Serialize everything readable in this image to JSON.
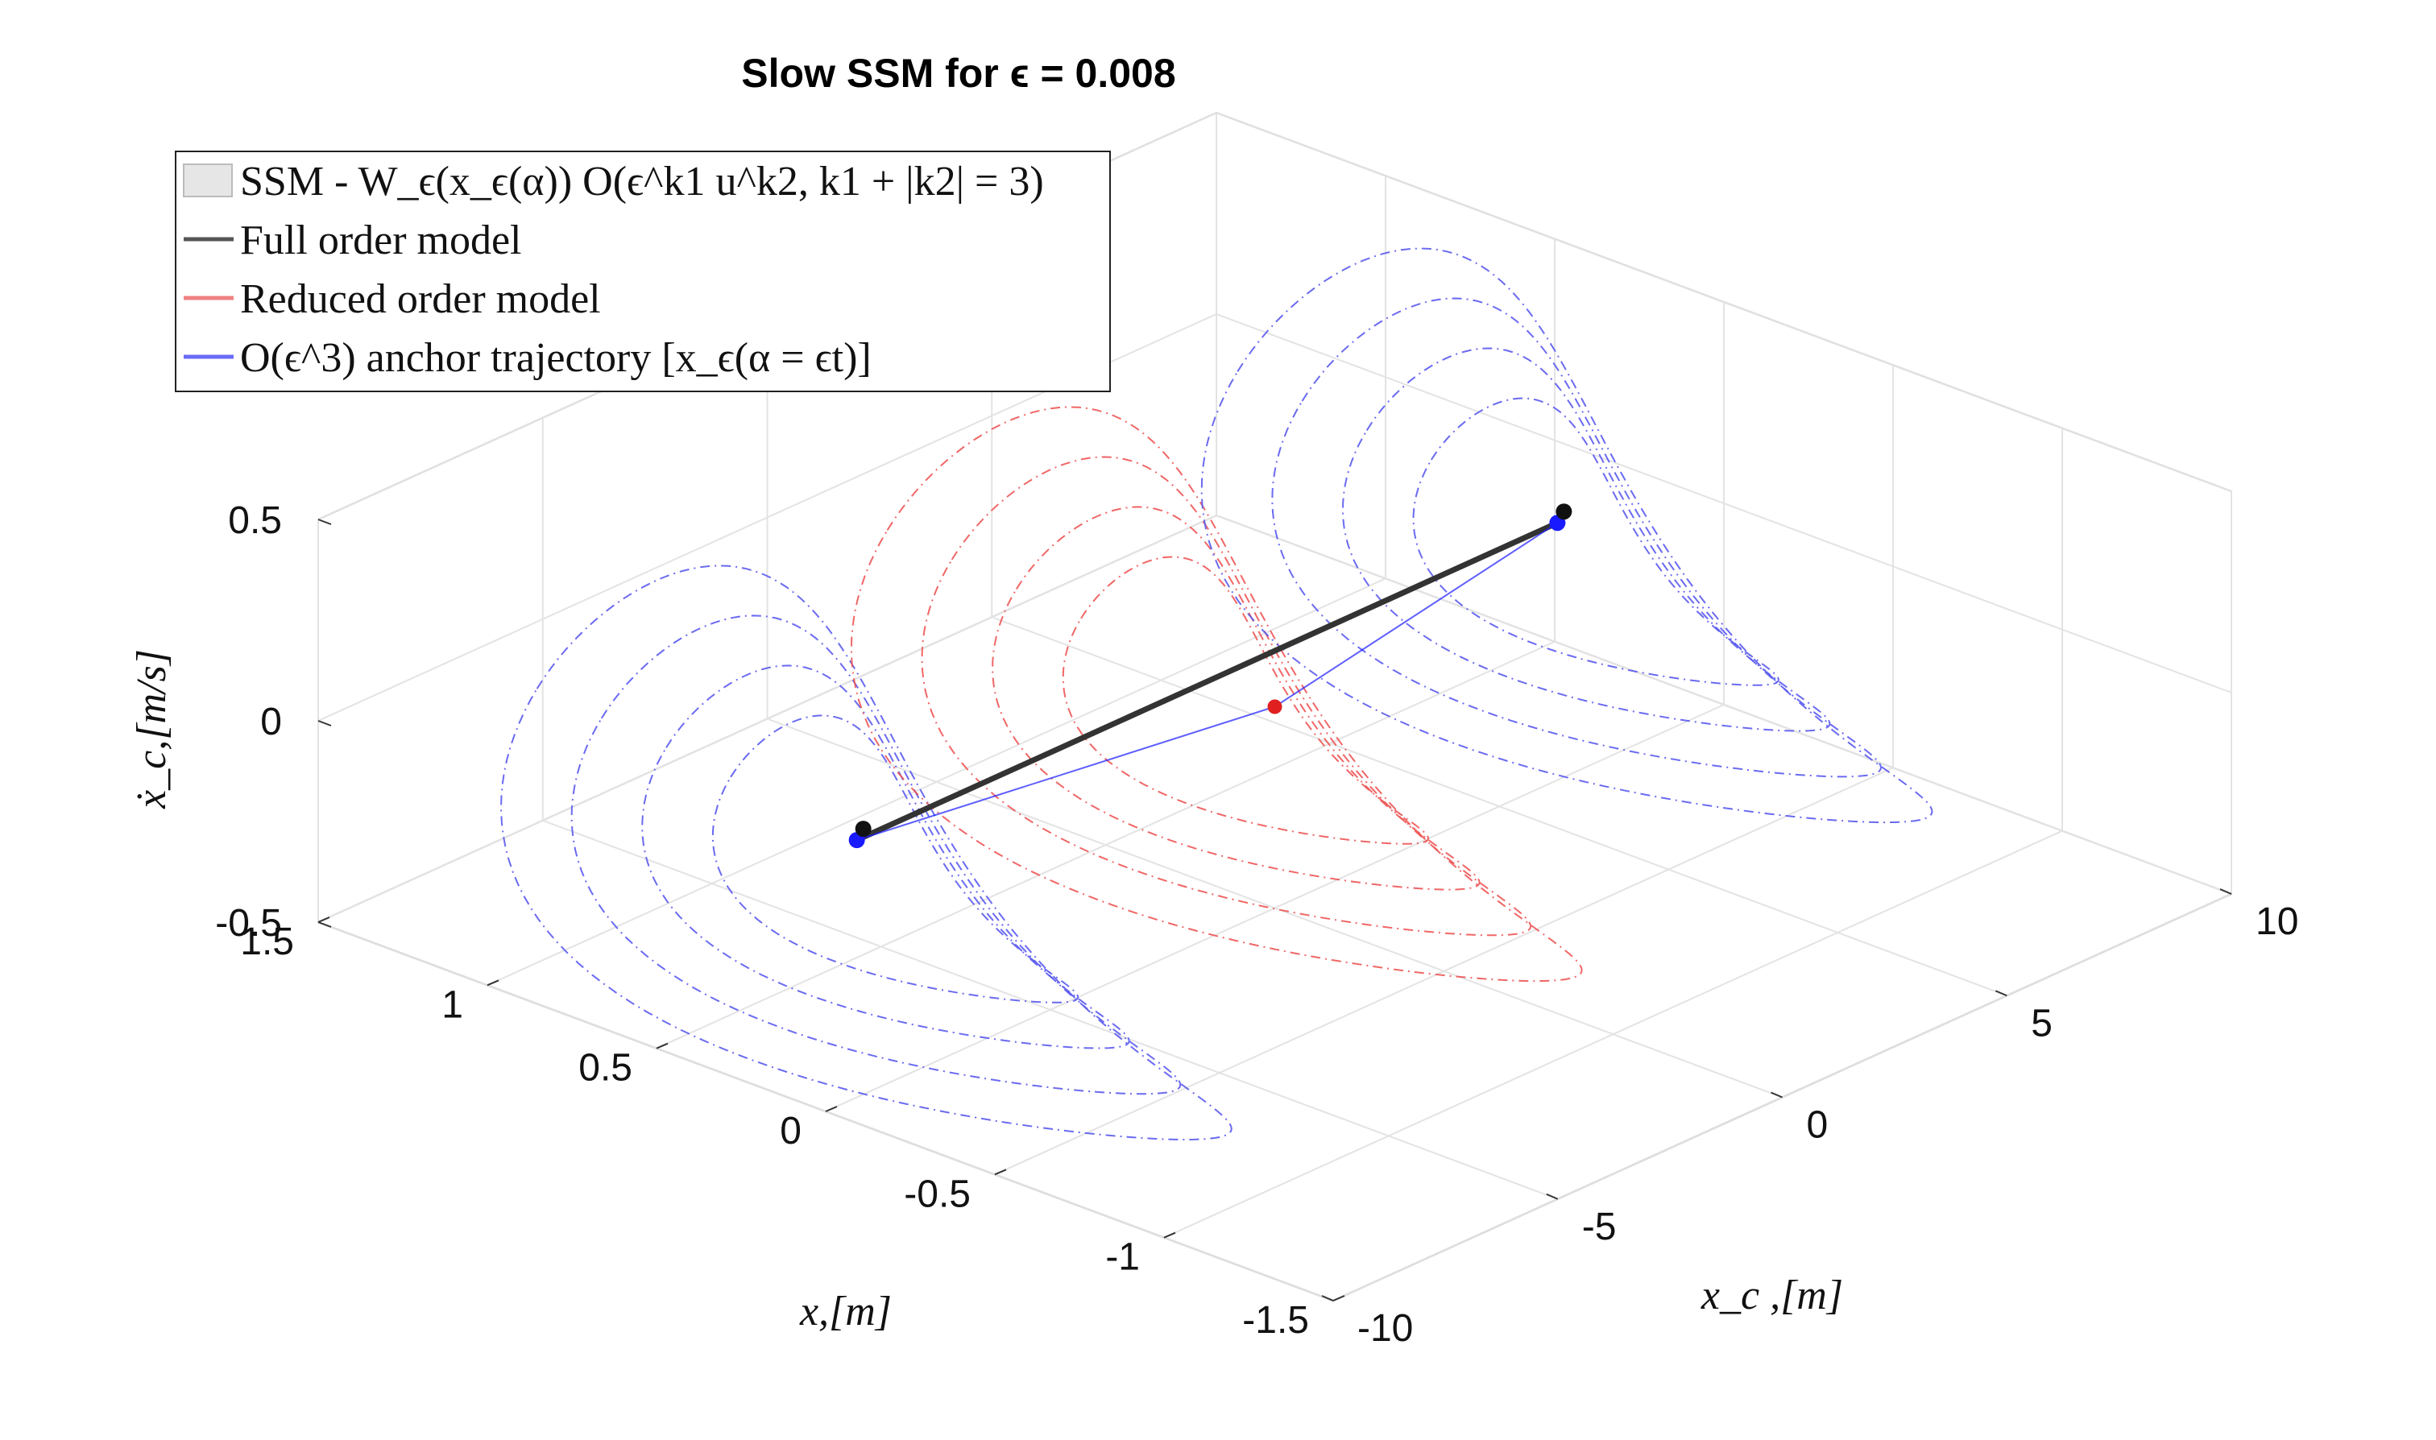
{
  "chart_data": {
    "type": "line",
    "title": "Slow SSM for ϵ = 0.008",
    "xlabel": "x,[m]",
    "ylabel": "x_c ,[m]",
    "zlabel": "ẋ_c,[m/s]",
    "x_ticks": [
      "1.5",
      "1",
      "0.5",
      "0",
      "-0.5",
      "-1",
      "-1.5"
    ],
    "y_ticks": [
      "-10",
      "-5",
      "0",
      "5",
      "10"
    ],
    "z_ticks": [
      "-0.5",
      "0",
      "0.5"
    ],
    "xlim": [
      -1.5,
      1.5
    ],
    "ylim": [
      -10,
      10
    ],
    "zlim": [
      -0.5,
      0.5
    ],
    "grid": true,
    "legend_position": "top-left",
    "legend": [
      {
        "label": "SSM - W_ϵ(x_ϵ(α)) O(ϵ^k1 u^k2, k1 + |k2| = 3)",
        "color": "#e6e6e6",
        "kind": "patch"
      },
      {
        "label": "Full order model",
        "color": "#555555",
        "kind": "line"
      },
      {
        "label": "Reduced order model",
        "color": "#f08080",
        "kind": "line"
      },
      {
        "label": "O(ϵ^3) anchor trajectory [x_ϵ(α = ϵt)]",
        "color": "#6b6bf5",
        "kind": "line"
      }
    ],
    "colors": {
      "ssm_blue": "#5a5af0",
      "ssm_red": "#ee5555",
      "full_order": "#333333",
      "anchor": "#1a1aff",
      "midpoint": "#e02020"
    },
    "series": [
      {
        "name": "Full order model",
        "points": [
          [
            0.2,
            -7.8,
            0.0
          ],
          [
            0.2,
            7.8,
            0.0
          ]
        ]
      },
      {
        "name": "O(ϵ^3) anchor trajectory [x_ϵ(α = ϵt)]",
        "points": [
          [
            0.2,
            -7.8,
            0.0
          ],
          [
            0.0,
            0.0,
            0.0
          ],
          [
            0.2,
            7.8,
            0.0
          ]
        ]
      }
    ],
    "ssm_slices": [
      {
        "color_key": "ssm_blue",
        "y": -7.8
      },
      {
        "color_key": "ssm_red",
        "y": 0.0
      },
      {
        "color_key": "ssm_blue",
        "y": 7.8
      }
    ],
    "contour_levels": [
      0.6,
      0.8,
      1.0,
      1.2
    ]
  }
}
